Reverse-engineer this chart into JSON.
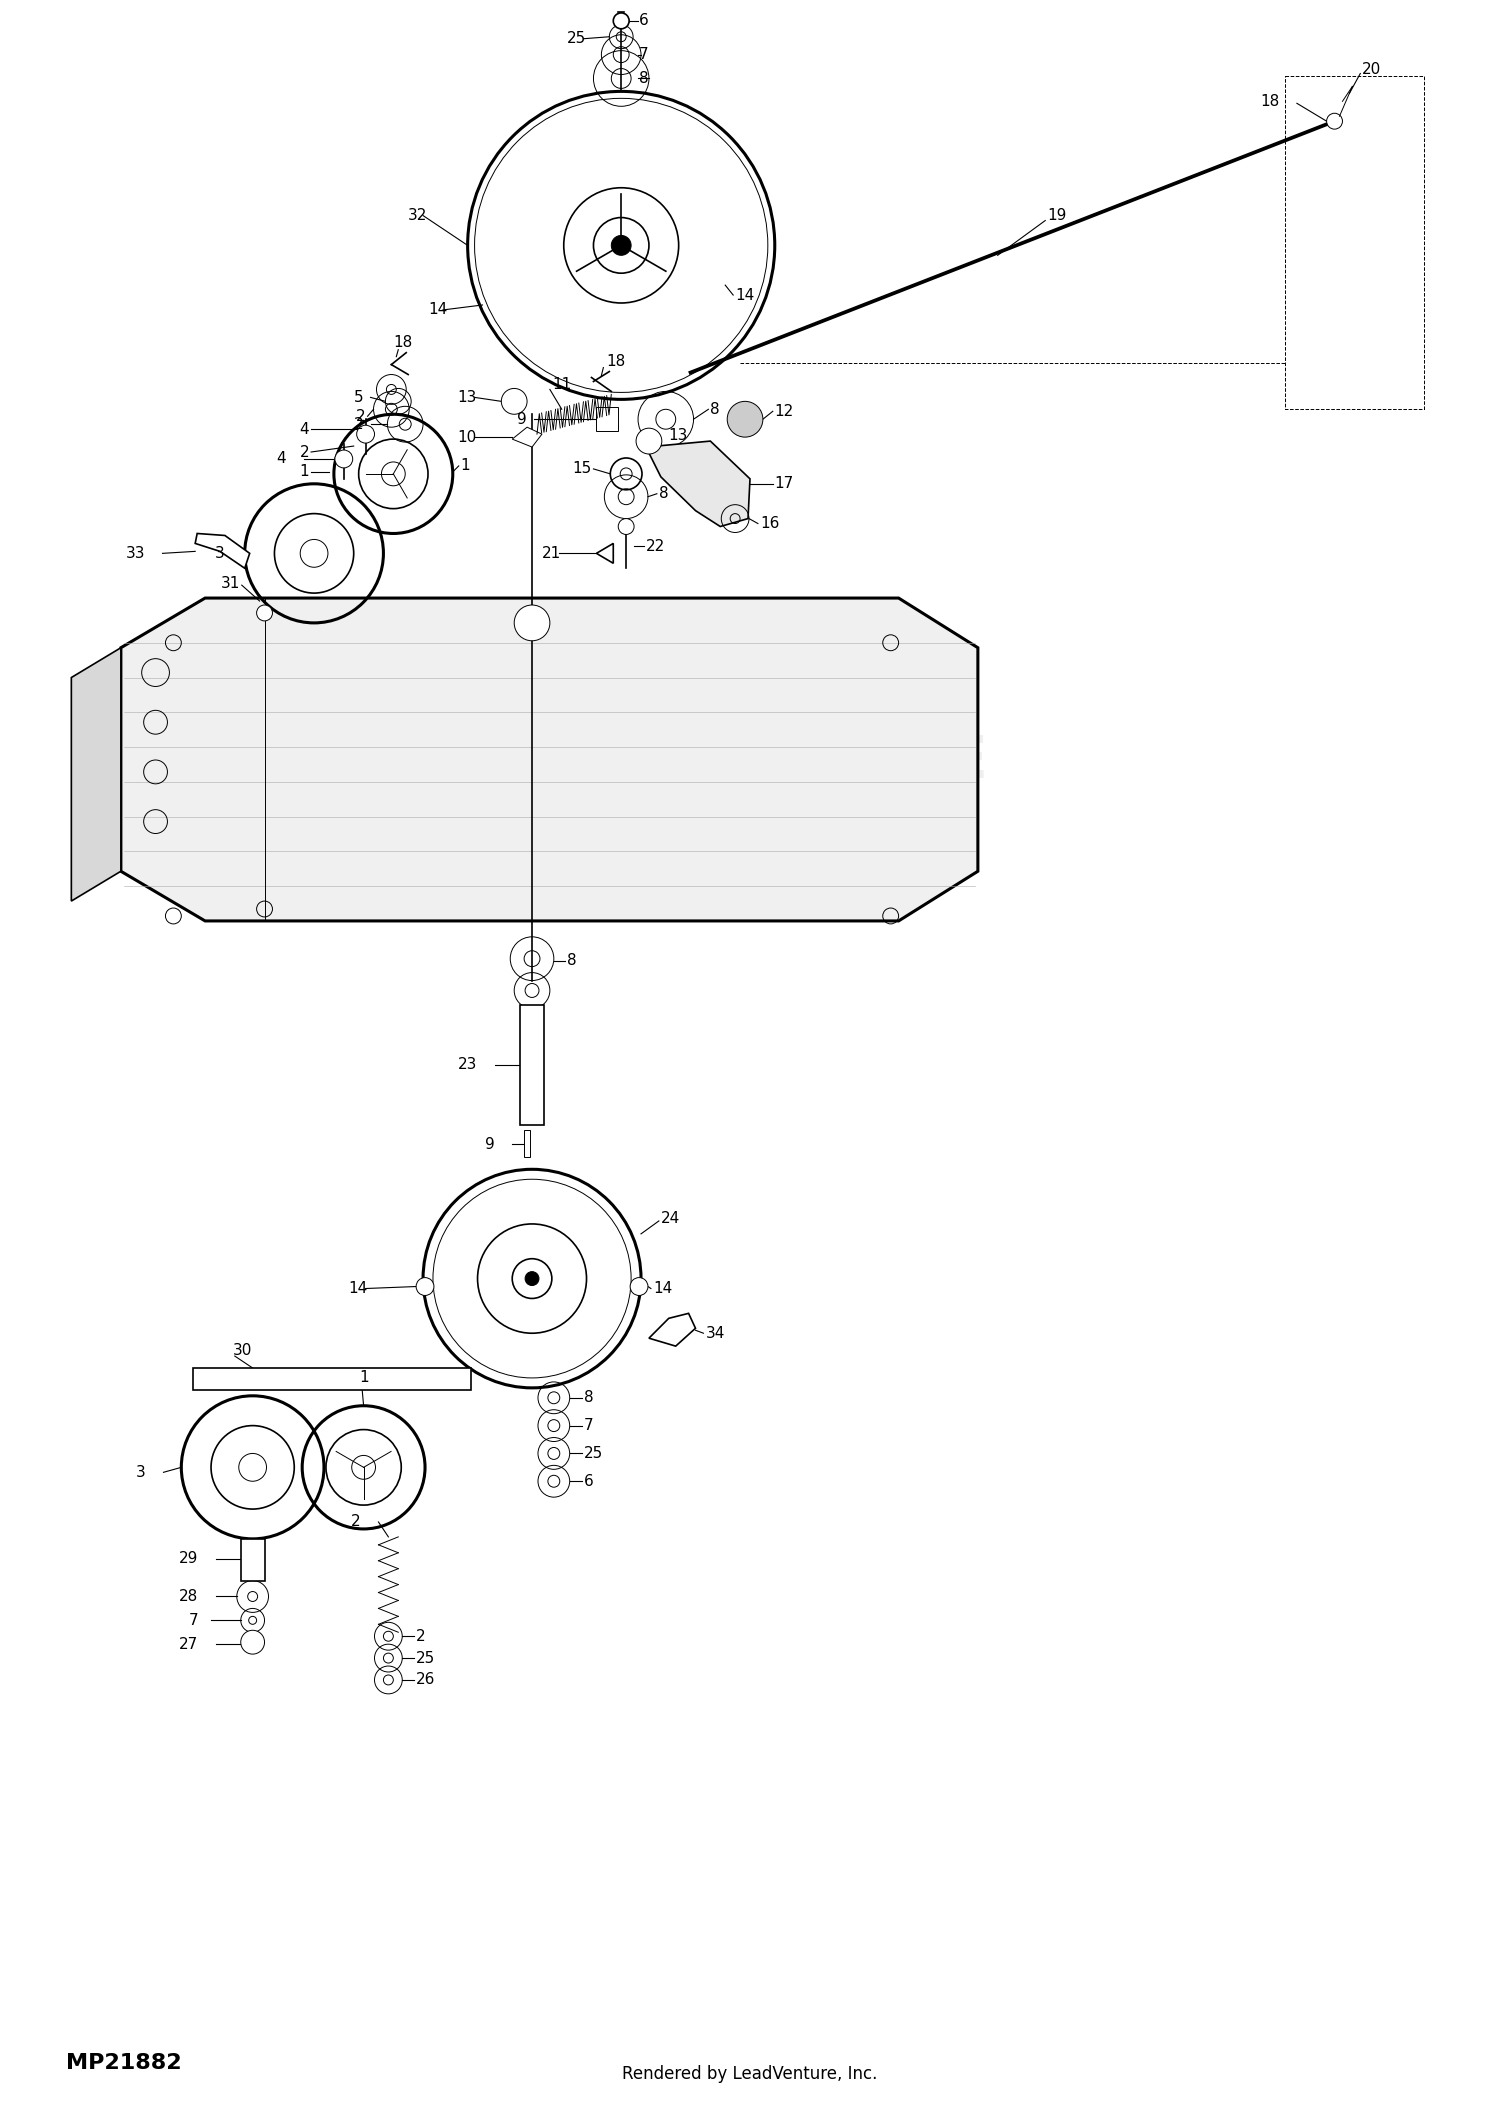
{
  "part_number": "MP21882",
  "footer": "Rendered by LeadVenture, Inc.",
  "bg_color": "#ffffff",
  "line_color": "#000000",
  "watermark": "LEADVENTURE",
  "fig_width": 15.0,
  "fig_height": 21.26
}
